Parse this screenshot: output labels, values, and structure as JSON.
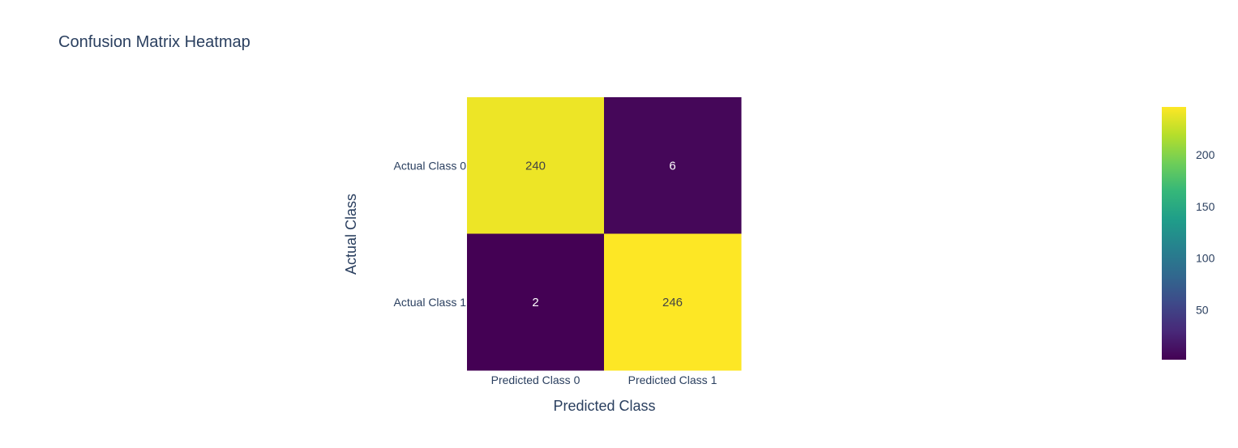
{
  "chart_data": {
    "type": "heatmap",
    "title": "Confusion Matrix Heatmap",
    "xlabel": "Predicted Class",
    "ylabel": "Actual Class",
    "x_categories": [
      "Predicted Class 0",
      "Predicted Class 1"
    ],
    "y_categories": [
      "Actual Class 0",
      "Actual Class 1"
    ],
    "z": [
      [
        240,
        6
      ],
      [
        2,
        246
      ]
    ],
    "colorscale": "Viridis",
    "zmin": 2,
    "zmax": 246,
    "colorbar_ticks": [
      50,
      100,
      150,
      200
    ],
    "grid": false,
    "colorbar_placement": "right"
  }
}
